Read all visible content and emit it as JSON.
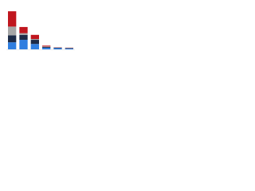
{
  "chart_data": {
    "type": "stacked-bar",
    "categories": [
      null,
      null,
      null,
      null,
      null,
      null
    ],
    "series": [
      {
        "color": "#2f7ee0",
        "values": [
          17,
          23,
          13,
          4,
          3,
          2
        ]
      },
      {
        "color": "#1d2b47",
        "values": [
          17,
          12,
          10,
          2,
          1,
          1
        ]
      },
      {
        "color": "#a6a6a6",
        "values": [
          21,
          4,
          2,
          1,
          0.5,
          0.5
        ]
      },
      {
        "color": "#c0161e",
        "values": [
          37,
          15,
          10,
          2,
          0.5,
          0.5
        ]
      }
    ],
    "ylim": [
      0,
      100
    ]
  }
}
